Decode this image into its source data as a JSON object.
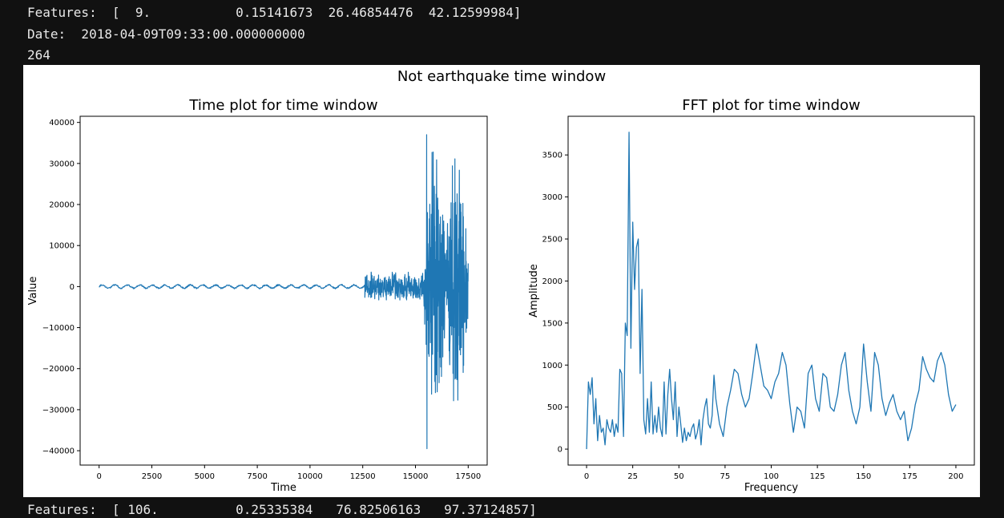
{
  "console": {
    "features_line": "Features:  [  9.           0.15141673  26.46854476  42.12599984]",
    "date_line": "Date:  2018-04-09T09:33:00.000000000",
    "count_line": "264",
    "cut_line": "Features:  [ 106.          0.25335384   76.82506163   97.37124857]"
  },
  "figure": {
    "suptitle": "Not earthquake time window"
  },
  "chart_data": [
    {
      "type": "line",
      "title": "Time plot for time window",
      "xlabel": "Time",
      "ylabel": "Value",
      "xlim": [
        -900,
        18400
      ],
      "ylim": [
        -43500,
        41500
      ],
      "xticks": [
        0,
        2500,
        5000,
        7500,
        10000,
        12500,
        15000,
        17500
      ],
      "yticks": [
        -40000,
        -30000,
        -20000,
        -10000,
        0,
        10000,
        20000,
        30000,
        40000
      ],
      "grid": false,
      "color": "#1f77b4",
      "segments": [
        {
          "x_start": 0,
          "x_end": 12600,
          "amplitude": 700,
          "note_rendered_as": "low-amplitude oscillation"
        },
        {
          "x_start": 12600,
          "x_end": 15400,
          "amplitude": 4000
        },
        {
          "x_start": 15400,
          "x_end": 17500,
          "amplitude": 37000
        }
      ],
      "extremes": {
        "max": 37000,
        "min": -39500,
        "x_end": 17500
      }
    },
    {
      "type": "line",
      "title": "FFT plot for time window",
      "xlabel": "Frequency",
      "ylabel": "Amplitude",
      "xlim": [
        -10,
        210
      ],
      "ylim": [
        -190,
        3960
      ],
      "xticks": [
        0,
        25,
        50,
        75,
        100,
        125,
        150,
        175,
        200
      ],
      "yticks": [
        0,
        500,
        1000,
        1500,
        2000,
        2500,
        3000,
        3500
      ],
      "grid": false,
      "color": "#1f77b4",
      "x": [
        0,
        1,
        2,
        3,
        4,
        5,
        6,
        7,
        8,
        9,
        10,
        11,
        12,
        13,
        14,
        15,
        16,
        17,
        18,
        19,
        20,
        21,
        22,
        23,
        24,
        25,
        26,
        27,
        28,
        29,
        30,
        31,
        32,
        33,
        34,
        35,
        36,
        37,
        38,
        39,
        40,
        41,
        42,
        43,
        44,
        45,
        46,
        47,
        48,
        49,
        50,
        51,
        52,
        53,
        54,
        55,
        56,
        57,
        58,
        59,
        60,
        61,
        62,
        63,
        64,
        65,
        66,
        67,
        68,
        69,
        70,
        72,
        74,
        76,
        78,
        80,
        82,
        84,
        86,
        88,
        90,
        92,
        94,
        96,
        98,
        100,
        102,
        104,
        106,
        108,
        110,
        112,
        114,
        116,
        118,
        120,
        122,
        124,
        126,
        128,
        130,
        132,
        134,
        136,
        138,
        140,
        142,
        144,
        146,
        148,
        150,
        152,
        154,
        156,
        158,
        160,
        162,
        164,
        166,
        168,
        170,
        172,
        174,
        176,
        178,
        180,
        182,
        184,
        186,
        188,
        190,
        192,
        194,
        196,
        198,
        200
      ],
      "y": [
        0,
        800,
        650,
        850,
        300,
        600,
        100,
        400,
        200,
        250,
        50,
        350,
        250,
        200,
        350,
        150,
        300,
        200,
        950,
        900,
        150,
        1500,
        1350,
        3770,
        1200,
        2700,
        1900,
        2400,
        2500,
        900,
        1900,
        350,
        180,
        600,
        200,
        800,
        180,
        400,
        200,
        500,
        250,
        150,
        800,
        180,
        650,
        950,
        600,
        350,
        800,
        150,
        500,
        300,
        80,
        250,
        100,
        200,
        150,
        250,
        300,
        120,
        200,
        350,
        50,
        350,
        500,
        600,
        300,
        250,
        400,
        880,
        600,
        300,
        150,
        500,
        700,
        950,
        900,
        650,
        500,
        600,
        900,
        1250,
        1000,
        750,
        700,
        600,
        800,
        900,
        1150,
        1000,
        550,
        200,
        500,
        450,
        250,
        900,
        1000,
        600,
        450,
        900,
        850,
        500,
        450,
        650,
        1000,
        1150,
        700,
        450,
        300,
        500,
        1250,
        800,
        450,
        1150,
        1000,
        600,
        400,
        550,
        650,
        450,
        350,
        450,
        100,
        250,
        530,
        700,
        1100,
        950,
        850,
        800,
        1050,
        1150,
        1000,
        650,
        450,
        530
      ]
    }
  ]
}
